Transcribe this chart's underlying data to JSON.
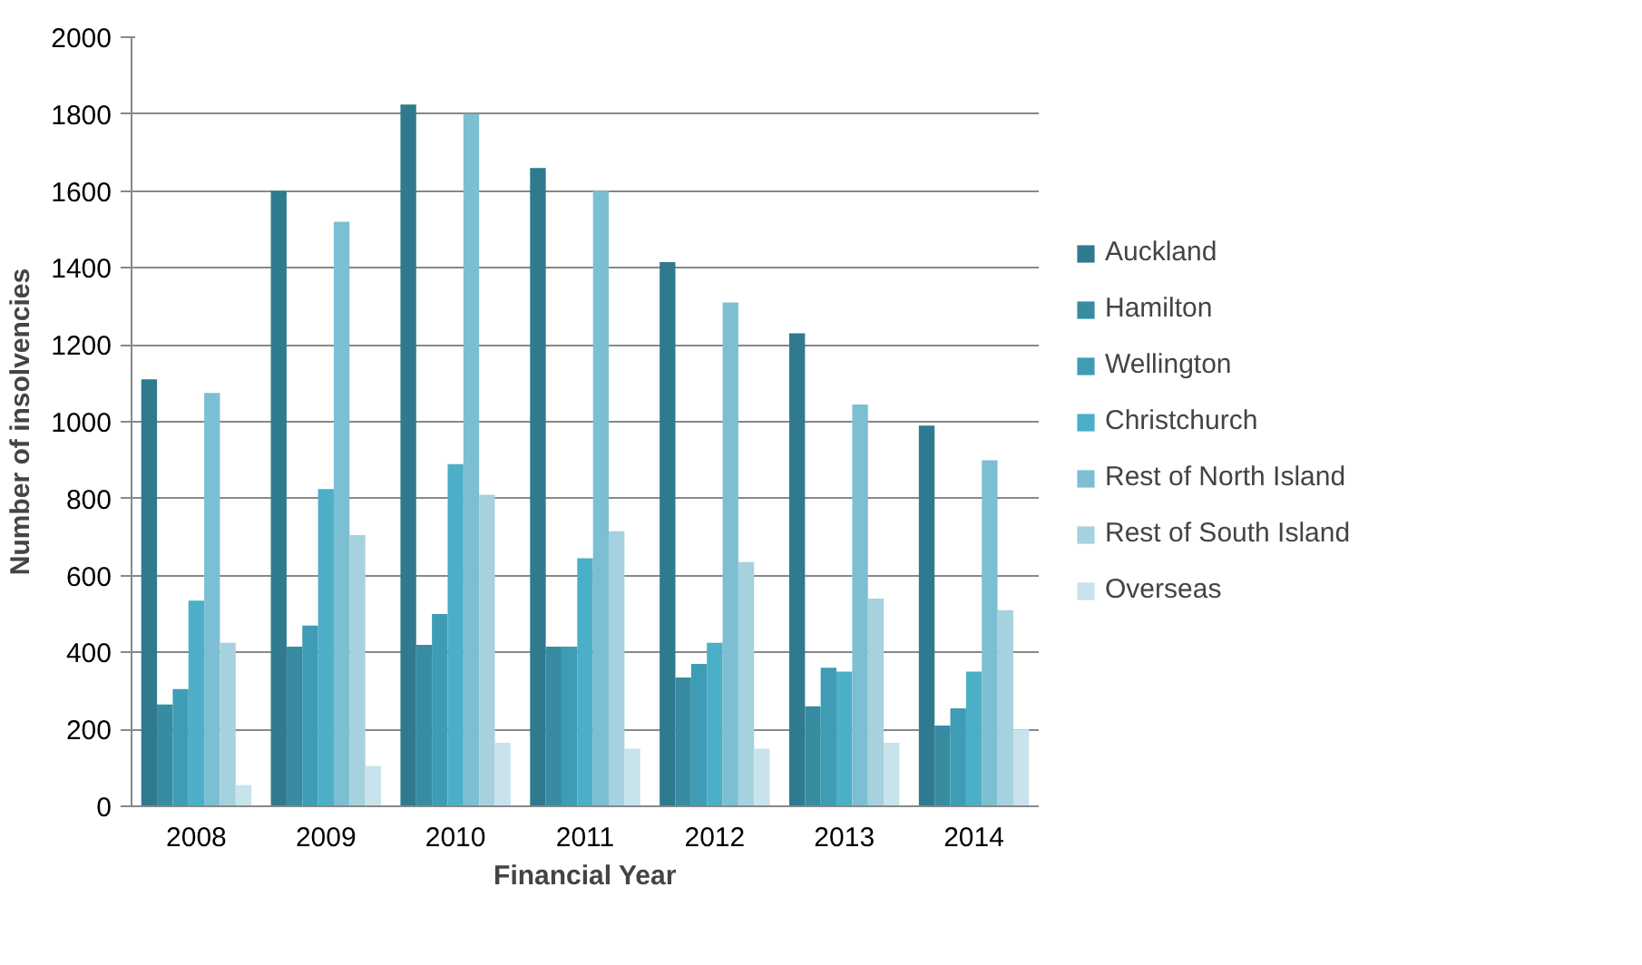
{
  "chart_data": {
    "type": "bar",
    "xlabel": "Financial Year",
    "ylabel": "Number of insolvencies",
    "categories": [
      "2008",
      "2009",
      "2010",
      "2011",
      "2012",
      "2013",
      "2014"
    ],
    "series": [
      {
        "name": "Auckland",
        "color": "#2f7a8e",
        "values": [
          1110,
          1600,
          1825,
          1660,
          1415,
          1230,
          990
        ]
      },
      {
        "name": "Hamilton",
        "color": "#378ca2",
        "values": [
          265,
          415,
          420,
          415,
          335,
          260,
          210
        ]
      },
      {
        "name": "Wellington",
        "color": "#3f9cb5",
        "values": [
          305,
          470,
          500,
          415,
          370,
          360,
          255
        ]
      },
      {
        "name": "Christchurch",
        "color": "#4bafc8",
        "values": [
          535,
          825,
          890,
          645,
          425,
          350,
          350
        ]
      },
      {
        "name": "Rest of North Island",
        "color": "#7dbfd2",
        "values": [
          1075,
          1520,
          1800,
          1600,
          1310,
          1045,
          900
        ]
      },
      {
        "name": "Rest of South Island",
        "color": "#a6d1de",
        "values": [
          425,
          705,
          810,
          715,
          635,
          540,
          510
        ]
      },
      {
        "name": "Overseas",
        "color": "#c8e3eb",
        "values": [
          55,
          105,
          165,
          150,
          150,
          165,
          200
        ]
      }
    ],
    "ylim": [
      0,
      2000
    ],
    "yticks": [
      0,
      200,
      400,
      600,
      800,
      1000,
      1200,
      1400,
      1600,
      1800,
      2000
    ],
    "grid": "y",
    "legend": "right"
  }
}
